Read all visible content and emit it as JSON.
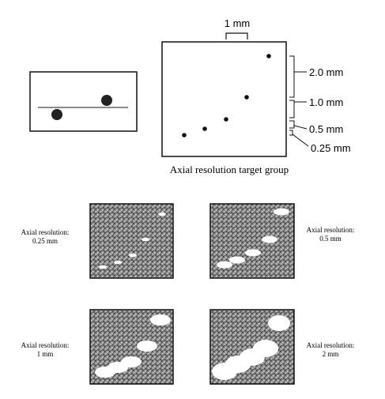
{
  "target_group": {
    "caption": "Axial resolution target group",
    "lateral_spacing_label": "1 mm",
    "axial_spacings": [
      {
        "label": "2.0 mm",
        "value_mm": 2.0
      },
      {
        "label": "1.0 mm",
        "value_mm": 1.0
      },
      {
        "label": "0.5 mm",
        "value_mm": 0.5
      },
      {
        "label": "0.25 mm",
        "value_mm": 0.25
      }
    ]
  },
  "panels": [
    {
      "line1": "Axial resolution:",
      "line2": "0.25 mm",
      "resolution_mm": 0.25
    },
    {
      "line1": "Axial resolution:",
      "line2": "0.5 mm",
      "resolution_mm": 0.5
    },
    {
      "line1": "Axial resolution:",
      "line2": "1 mm",
      "resolution_mm": 1
    },
    {
      "line1": "Axial resolution:",
      "line2": "2 mm",
      "resolution_mm": 2
    }
  ],
  "colors": {
    "ink": "#111111",
    "speckle_background": "#7a7a7a",
    "echo_fill": "#ffffff"
  }
}
